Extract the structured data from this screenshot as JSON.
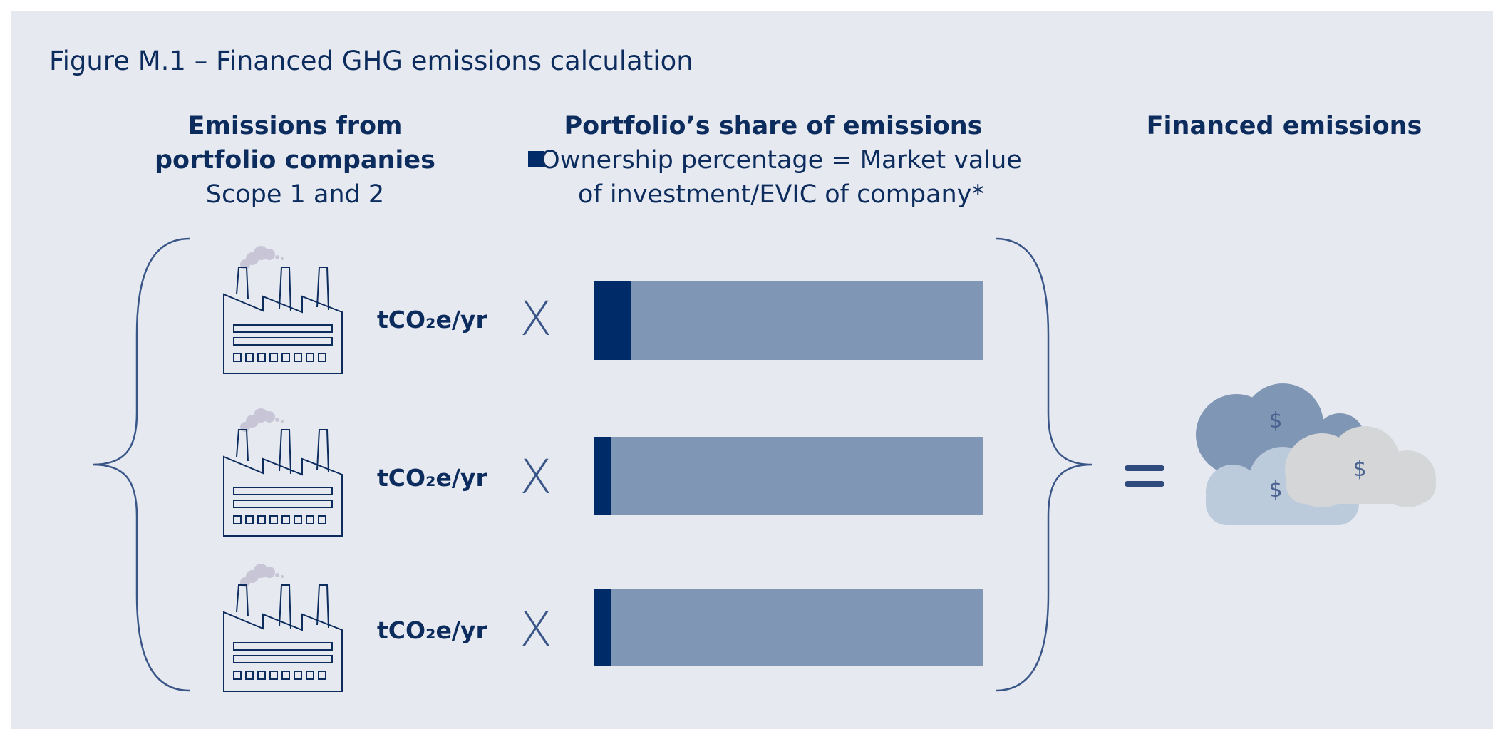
{
  "title": "Figure M.1 – Financed GHG emissions calculation",
  "columns": [
    {
      "heading": [
        "Emissions from",
        "portfolio companies"
      ],
      "subheading": "Scope 1 and 2"
    },
    {
      "heading": [
        "Portfolio’s share of emissions"
      ],
      "legend": [
        "Ownership percentage = Market value",
        "of investment/EVIC of company*"
      ]
    },
    {
      "heading": [
        "Financed emissions"
      ]
    }
  ],
  "rows": [
    {
      "unit": "tCO₂e/yr",
      "operator": "X"
    },
    {
      "unit": "tCO₂e/yr",
      "operator": "X"
    },
    {
      "unit": "tCO₂e/yr",
      "operator": "X"
    }
  ],
  "clouds": [
    "$",
    "$",
    "$"
  ]
}
